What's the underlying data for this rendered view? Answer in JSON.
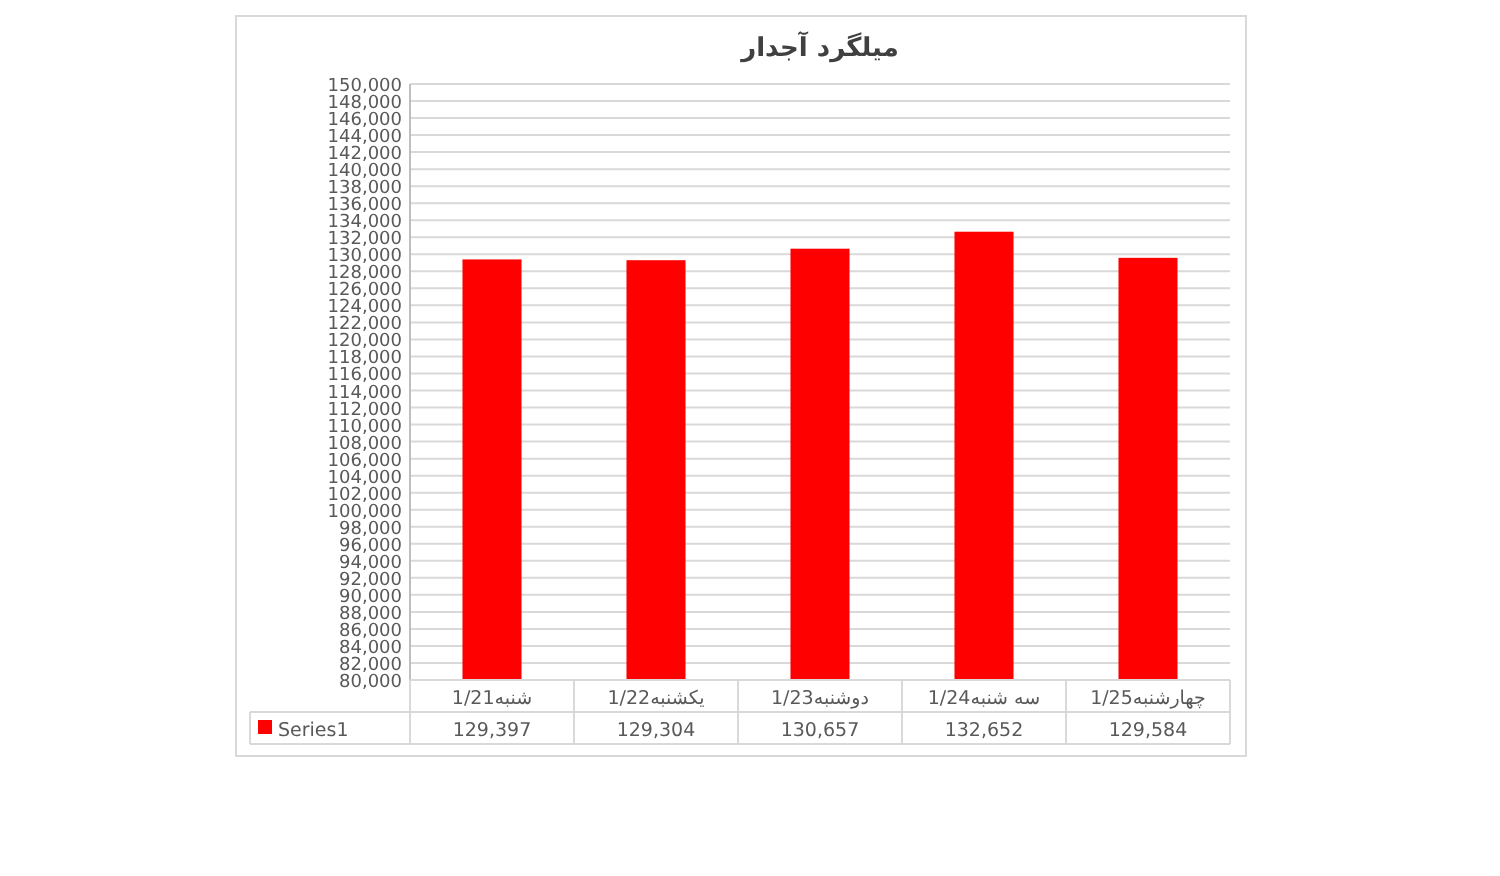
{
  "chart_data": {
    "type": "bar",
    "title": "میلگرد آجدار",
    "categories": [
      "1/21شنبه",
      "1/22یکشنبه",
      "1/23دوشنبه",
      "1/24سه شنبه",
      "1/25چهارشنبه"
    ],
    "series": [
      {
        "name": "Series1",
        "color": "#ff0000",
        "values": [
          129397,
          129304,
          130657,
          132652,
          129584
        ],
        "value_labels": [
          "129,397",
          "129,304",
          "130,657",
          "132,652",
          "129,584"
        ]
      }
    ],
    "ylim": [
      80000,
      150000
    ],
    "yticks": [
      {
        "value": 80000,
        "label": "80,000"
      },
      {
        "value": 82000,
        "label": "82,000"
      },
      {
        "value": 84000,
        "label": "84,000"
      },
      {
        "value": 86000,
        "label": "86,000"
      },
      {
        "value": 88000,
        "label": "88,000"
      },
      {
        "value": 90000,
        "label": "90,000"
      },
      {
        "value": 92000,
        "label": "92,000"
      },
      {
        "value": 94000,
        "label": "94,000"
      },
      {
        "value": 96000,
        "label": "96,000"
      },
      {
        "value": 98000,
        "label": "98,000"
      },
      {
        "value": 100000,
        "label": "100,000"
      },
      {
        "value": 102000,
        "label": "102,000"
      },
      {
        "value": 104000,
        "label": "104,000"
      },
      {
        "value": 106000,
        "label": "106,000"
      },
      {
        "value": 108000,
        "label": "108,000"
      },
      {
        "value": 110000,
        "label": "110,000"
      },
      {
        "value": 112000,
        "label": "112,000"
      },
      {
        "value": 114000,
        "label": "114,000"
      },
      {
        "value": 116000,
        "label": "116,000"
      },
      {
        "value": 118000,
        "label": "118,000"
      },
      {
        "value": 120000,
        "label": "120,000"
      },
      {
        "value": 122000,
        "label": "122,000"
      },
      {
        "value": 124000,
        "label": "124,000"
      },
      {
        "value": 126000,
        "label": "126,000"
      },
      {
        "value": 128000,
        "label": "128,000"
      },
      {
        "value": 130000,
        "label": "130,000"
      },
      {
        "value": 132000,
        "label": "132,000"
      },
      {
        "value": 134000,
        "label": "134,000"
      },
      {
        "value": 136000,
        "label": "136,000"
      },
      {
        "value": 138000,
        "label": "138,000"
      },
      {
        "value": 140000,
        "label": "140,000"
      },
      {
        "value": 142000,
        "label": "142,000"
      },
      {
        "value": 144000,
        "label": "144,000"
      },
      {
        "value": 146000,
        "label": "146,000"
      },
      {
        "value": 148000,
        "label": "148,000"
      },
      {
        "value": 150000,
        "label": "150,000"
      }
    ],
    "grid": "y"
  }
}
